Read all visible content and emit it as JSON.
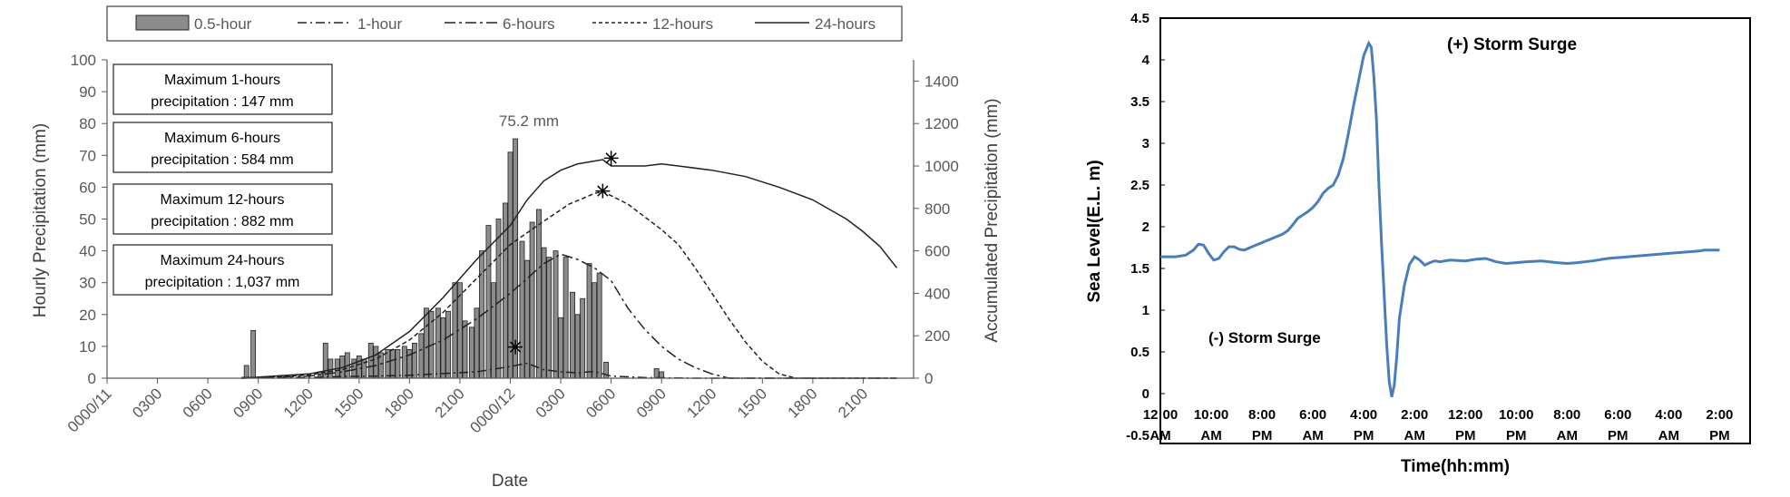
{
  "chart_data": [
    {
      "type": "bar",
      "xlabel": "Date",
      "ylabel": "Hourly Precipitation (mm)",
      "y2label": "Accumulated Precipitation (mm)",
      "ylim": [
        0,
        100
      ],
      "y2lim": [
        0,
        1500
      ],
      "yticks": [
        "0",
        "10",
        "20",
        "30",
        "40",
        "50",
        "60",
        "70",
        "80",
        "90",
        "100"
      ],
      "y2ticks": [
        "0",
        "200",
        "400",
        "600",
        "800",
        "1000",
        "1200",
        "1400"
      ],
      "xticks": [
        "0000/11",
        "0300",
        "0600",
        "0900",
        "1200",
        "1500",
        "1800",
        "2100",
        "0000/12",
        "0300",
        "0600",
        "0900",
        "1200",
        "1500",
        "1800",
        "2100"
      ],
      "hours_per_xtick": 3,
      "legend_position": "top",
      "legend": {
        "bar": "0.5-hour",
        "h1": "1-hour",
        "h6": "6-hours",
        "h12": "12-hours",
        "h24": "24-hours"
      },
      "peak_label": "75.2 mm",
      "annotations": [
        {
          "line1": "Maximum 1-hours",
          "line2": "precipitation : 147 mm"
        },
        {
          "line1": "Maximum 6-hours",
          "line2": "precipitation : 584 mm"
        },
        {
          "line1": "Maximum 12-hours",
          "line2": "precipitation : 882 mm"
        },
        {
          "line1": "Maximum 24-hours",
          "line2": "precipitation : 1,037 mm"
        }
      ],
      "bars": [
        [
          8.3,
          4
        ],
        [
          8.7,
          15
        ],
        [
          12.7,
          2
        ],
        [
          13.0,
          11
        ],
        [
          13.3,
          6
        ],
        [
          13.7,
          6
        ],
        [
          14.0,
          7
        ],
        [
          14.3,
          8
        ],
        [
          14.7,
          6
        ],
        [
          15.0,
          7
        ],
        [
          15.3,
          6
        ],
        [
          15.7,
          11
        ],
        [
          16.0,
          10
        ],
        [
          16.3,
          8
        ],
        [
          16.7,
          9
        ],
        [
          17.0,
          9
        ],
        [
          17.3,
          9
        ],
        [
          17.7,
          10
        ],
        [
          18.0,
          9
        ],
        [
          18.3,
          11
        ],
        [
          18.7,
          14
        ],
        [
          19.0,
          22
        ],
        [
          19.3,
          21
        ],
        [
          19.7,
          22
        ],
        [
          20.0,
          19
        ],
        [
          20.3,
          21
        ],
        [
          20.7,
          30
        ],
        [
          21.0,
          30
        ],
        [
          21.3,
          18
        ],
        [
          21.7,
          16
        ],
        [
          22.0,
          22
        ],
        [
          22.3,
          40
        ],
        [
          22.7,
          48
        ],
        [
          23.0,
          30
        ],
        [
          23.3,
          50
        ],
        [
          23.7,
          55
        ],
        [
          24.0,
          71
        ],
        [
          24.3,
          75.2
        ],
        [
          24.7,
          43
        ],
        [
          25.0,
          37
        ],
        [
          25.3,
          49
        ],
        [
          25.7,
          53
        ],
        [
          26.0,
          41
        ],
        [
          26.3,
          38
        ],
        [
          26.7,
          40
        ],
        [
          27.0,
          19
        ],
        [
          27.3,
          38
        ],
        [
          27.7,
          27
        ],
        [
          28.0,
          20
        ],
        [
          28.3,
          25
        ],
        [
          28.7,
          36
        ],
        [
          29.0,
          30
        ],
        [
          29.3,
          33
        ],
        [
          29.7,
          5
        ],
        [
          32.7,
          3
        ],
        [
          33.0,
          2
        ]
      ],
      "h24": [
        [
          8,
          0
        ],
        [
          12,
          20
        ],
        [
          14,
          50
        ],
        [
          16,
          110
        ],
        [
          18,
          220
        ],
        [
          20,
          380
        ],
        [
          22,
          560
        ],
        [
          24,
          720
        ],
        [
          25,
          840
        ],
        [
          26,
          930
        ],
        [
          27,
          980
        ],
        [
          28,
          1010
        ],
        [
          29.5,
          1030
        ],
        [
          30,
          1000
        ],
        [
          32,
          1000
        ],
        [
          33,
          1010
        ],
        [
          34,
          1000
        ],
        [
          36,
          980
        ],
        [
          38,
          950
        ],
        [
          40,
          900
        ],
        [
          42,
          840
        ],
        [
          44,
          750
        ],
        [
          45,
          690
        ],
        [
          46,
          620
        ],
        [
          47,
          520
        ]
      ],
      "h24_marker": [
        30.0,
        1037
      ],
      "h12": [
        [
          8,
          0
        ],
        [
          12,
          15
        ],
        [
          14,
          40
        ],
        [
          16,
          90
        ],
        [
          18,
          180
        ],
        [
          20,
          310
        ],
        [
          22,
          470
        ],
        [
          24,
          630
        ],
        [
          26,
          740
        ],
        [
          27.5,
          820
        ],
        [
          29,
          870
        ],
        [
          29.5,
          880
        ],
        [
          31,
          820
        ],
        [
          33,
          700
        ],
        [
          34,
          630
        ],
        [
          35,
          520
        ],
        [
          36,
          400
        ],
        [
          37,
          280
        ],
        [
          38,
          170
        ],
        [
          39,
          80
        ],
        [
          40,
          20
        ],
        [
          41,
          0
        ],
        [
          47,
          0
        ]
      ],
      "h12_marker": [
        29.5,
        882
      ],
      "h6": [
        [
          8,
          0
        ],
        [
          12,
          10
        ],
        [
          14,
          30
        ],
        [
          16,
          60
        ],
        [
          18,
          110
        ],
        [
          20,
          180
        ],
        [
          22,
          280
        ],
        [
          23,
          340
        ],
        [
          24,
          400
        ],
        [
          25,
          470
        ],
        [
          26,
          540
        ],
        [
          27,
          584
        ],
        [
          28,
          560
        ],
        [
          29,
          520
        ],
        [
          30,
          460
        ],
        [
          31,
          330
        ],
        [
          32,
          230
        ],
        [
          33,
          150
        ],
        [
          34,
          90
        ],
        [
          35,
          50
        ],
        [
          36,
          20
        ],
        [
          37,
          0
        ],
        [
          47,
          0
        ]
      ],
      "h1": [
        [
          8,
          3
        ],
        [
          12,
          3
        ],
        [
          14,
          8
        ],
        [
          16,
          10
        ],
        [
          18,
          14
        ],
        [
          20,
          22
        ],
        [
          22,
          30
        ],
        [
          24,
          55
        ],
        [
          25,
          70
        ],
        [
          26,
          40
        ],
        [
          27,
          30
        ],
        [
          28,
          25
        ],
        [
          29,
          32
        ],
        [
          30,
          10
        ],
        [
          32,
          3
        ],
        [
          33,
          2
        ],
        [
          35,
          0
        ],
        [
          47,
          0
        ]
      ],
      "h1_marker": [
        24.3,
        147
      ]
    },
    {
      "type": "line",
      "xlabel": "Time(hh:mm)",
      "ylabel": "Sea Level(E.L. m)",
      "ylim": [
        -0.5,
        4.5
      ],
      "yticks": [
        "4.5",
        "4",
        "3.5",
        "3",
        "2.5",
        "2",
        "1.5",
        "1",
        "0.5",
        "0",
        "-0.5"
      ],
      "xticks": [
        [
          "12:00",
          "AM"
        ],
        [
          "10:00",
          "AM"
        ],
        [
          "8:00",
          "PM"
        ],
        [
          "6:00",
          "AM"
        ],
        [
          "4:00",
          "PM"
        ],
        [
          "2:00",
          "AM"
        ],
        [
          "12:00",
          "PM"
        ],
        [
          "10:00",
          "PM"
        ],
        [
          "8:00",
          "AM"
        ],
        [
          "6:00",
          "PM"
        ],
        [
          "4:00",
          "AM"
        ],
        [
          "2:00",
          "PM"
        ]
      ],
      "hours_per_xtick": 10,
      "annotation_top": "(+) Storm Surge",
      "annotation_bottom": "(-) Storm Surge",
      "series_color": "#4a7ebb",
      "points": [
        [
          0,
          1.64
        ],
        [
          3,
          1.64
        ],
        [
          5,
          1.66
        ],
        [
          6.5,
          1.72
        ],
        [
          7.5,
          1.79
        ],
        [
          8.5,
          1.78
        ],
        [
          9.5,
          1.68
        ],
        [
          10.5,
          1.6
        ],
        [
          11.5,
          1.62
        ],
        [
          12.5,
          1.7
        ],
        [
          13.5,
          1.76
        ],
        [
          14.5,
          1.76
        ],
        [
          15.5,
          1.73
        ],
        [
          16.5,
          1.72
        ],
        [
          18,
          1.76
        ],
        [
          20,
          1.81
        ],
        [
          22,
          1.86
        ],
        [
          24,
          1.91
        ],
        [
          25,
          1.95
        ],
        [
          26,
          2.02
        ],
        [
          27,
          2.1
        ],
        [
          28,
          2.14
        ],
        [
          29,
          2.18
        ],
        [
          30,
          2.23
        ],
        [
          31,
          2.3
        ],
        [
          32,
          2.4
        ],
        [
          33,
          2.46
        ],
        [
          34,
          2.5
        ],
        [
          35,
          2.62
        ],
        [
          36,
          2.82
        ],
        [
          37,
          3.12
        ],
        [
          38,
          3.45
        ],
        [
          39,
          3.75
        ],
        [
          40,
          4.05
        ],
        [
          41,
          4.2
        ],
        [
          41.5,
          4.15
        ],
        [
          42,
          3.8
        ],
        [
          42.5,
          3.3
        ],
        [
          43,
          2.5
        ],
        [
          43.5,
          1.8
        ],
        [
          44,
          1.2
        ],
        [
          44.5,
          0.6
        ],
        [
          45,
          0.15
        ],
        [
          45.5,
          -0.04
        ],
        [
          46,
          0.1
        ],
        [
          46.5,
          0.45
        ],
        [
          47,
          0.9
        ],
        [
          48,
          1.3
        ],
        [
          49,
          1.55
        ],
        [
          50,
          1.64
        ],
        [
          51,
          1.6
        ],
        [
          52,
          1.54
        ],
        [
          53,
          1.57
        ],
        [
          54,
          1.59
        ],
        [
          55,
          1.58
        ],
        [
          57,
          1.6
        ],
        [
          60,
          1.59
        ],
        [
          62,
          1.61
        ],
        [
          64,
          1.62
        ],
        [
          66,
          1.58
        ],
        [
          68,
          1.56
        ],
        [
          70,
          1.57
        ],
        [
          72,
          1.58
        ],
        [
          75,
          1.59
        ],
        [
          78,
          1.57
        ],
        [
          80,
          1.56
        ],
        [
          82,
          1.57
        ],
        [
          85,
          1.59
        ],
        [
          88,
          1.62
        ],
        [
          92,
          1.64
        ],
        [
          96,
          1.66
        ],
        [
          100,
          1.68
        ],
        [
          104,
          1.7
        ],
        [
          106,
          1.71
        ],
        [
          107,
          1.72
        ],
        [
          108,
          1.72
        ],
        [
          110,
          1.72
        ]
      ]
    }
  ]
}
